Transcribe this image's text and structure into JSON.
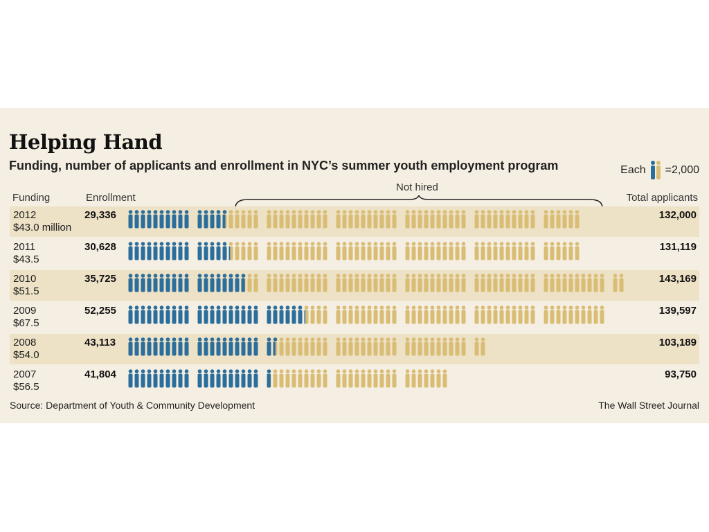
{
  "title": "Helping Hand",
  "subtitle": "Funding, number of applicants and enrollment in NYC’s summer youth employment program",
  "legend": {
    "prefix": "Each",
    "suffix": "=2,000"
  },
  "headers": {
    "funding": "Funding",
    "enrollment": "Enrollment",
    "not_hired": "Not hired",
    "total": "Total applicants"
  },
  "colors": {
    "enrolled": "#2b6e9c",
    "not_hired": "#d9bd74",
    "background": "#f5eee2",
    "row_shade": "#ede1c6"
  },
  "source": "Source: Department of Youth & Community Development",
  "credit": "The Wall Street Journal",
  "chart_data": {
    "type": "pictogram",
    "unit": 2000,
    "rows": [
      {
        "year": "2012",
        "funding": "$43.0 million",
        "enrollment": 29336,
        "enrollment_label": "29,336",
        "total": 132000,
        "total_label": "132,000"
      },
      {
        "year": "2011",
        "funding": "$43.5",
        "enrollment": 30628,
        "enrollment_label": "30,628",
        "total": 131119,
        "total_label": "131,119"
      },
      {
        "year": "2010",
        "funding": "$51.5",
        "enrollment": 35725,
        "enrollment_label": "35,725",
        "total": 143169,
        "total_label": "143,169"
      },
      {
        "year": "2009",
        "funding": "$67.5",
        "enrollment": 52255,
        "enrollment_label": "52,255",
        "total": 139597,
        "total_label": "139,597"
      },
      {
        "year": "2008",
        "funding": "$54.0",
        "enrollment": 43113,
        "enrollment_label": "43,113",
        "total": 103189,
        "total_label": "103,189"
      },
      {
        "year": "2007",
        "funding": "$56.5",
        "enrollment": 41804,
        "enrollment_label": "41,804",
        "total": 93750,
        "total_label": "93,750"
      }
    ]
  }
}
